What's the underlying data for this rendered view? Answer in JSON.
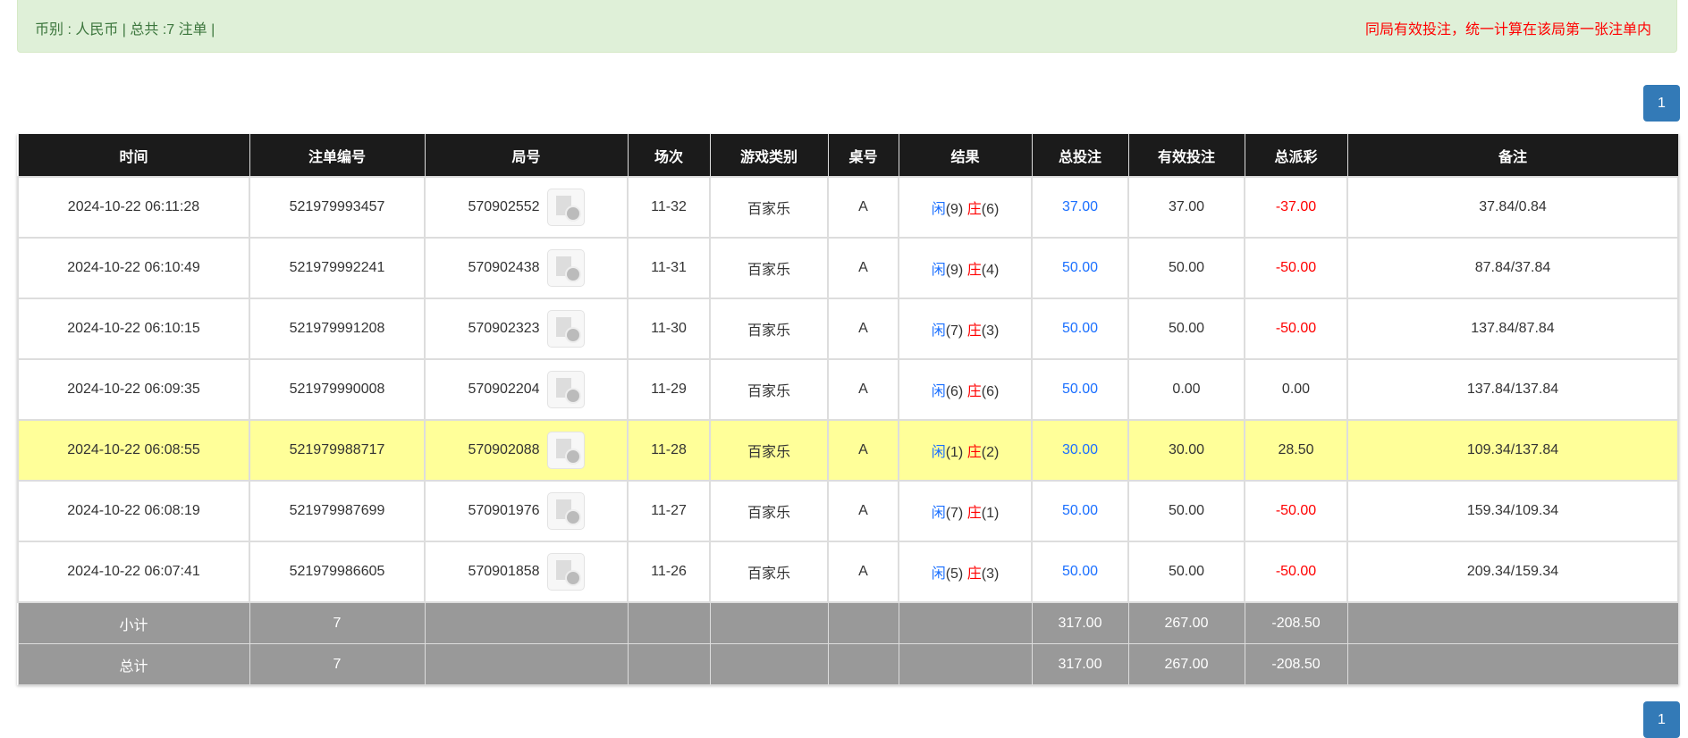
{
  "alert": {
    "left": "币别 : 人民币 | 总共 :7 注单 |",
    "right": "同局有效投注，统一计算在该局第一张注单内"
  },
  "pagination": {
    "page": "1"
  },
  "headers": [
    "时间",
    "注单编号",
    "局号",
    "场次",
    "游戏类别",
    "桌号",
    "结果",
    "总投注",
    "有效投注",
    "总派彩",
    "备注"
  ],
  "rows": [
    {
      "time": "2024-10-22 06:11:28",
      "bet_id": "521979993457",
      "round": "570902552",
      "session": "11-32",
      "game": "百家乐",
      "table": "A",
      "player": "闲",
      "pv": "(9)",
      "banker": "庄",
      "bv": "(6)",
      "total": "37.00",
      "valid": "37.00",
      "payout": "-37.00",
      "note": "37.84/0.84",
      "neg": true
    },
    {
      "time": "2024-10-22 06:10:49",
      "bet_id": "521979992241",
      "round": "570902438",
      "session": "11-31",
      "game": "百家乐",
      "table": "A",
      "player": "闲",
      "pv": "(9)",
      "banker": "庄",
      "bv": "(4)",
      "total": "50.00",
      "valid": "50.00",
      "payout": "-50.00",
      "note": "87.84/37.84",
      "neg": true
    },
    {
      "time": "2024-10-22 06:10:15",
      "bet_id": "521979991208",
      "round": "570902323",
      "session": "11-30",
      "game": "百家乐",
      "table": "A",
      "player": "闲",
      "pv": "(7)",
      "banker": "庄",
      "bv": "(3)",
      "total": "50.00",
      "valid": "50.00",
      "payout": "-50.00",
      "note": "137.84/87.84",
      "neg": true
    },
    {
      "time": "2024-10-22 06:09:35",
      "bet_id": "521979990008",
      "round": "570902204",
      "session": "11-29",
      "game": "百家乐",
      "table": "A",
      "player": "闲",
      "pv": "(6)",
      "banker": "庄",
      "bv": "(6)",
      "total": "50.00",
      "valid": "0.00",
      "payout": "0.00",
      "note": "137.84/137.84",
      "neg": false
    },
    {
      "time": "2024-10-22 06:08:55",
      "bet_id": "521979988717",
      "round": "570902088",
      "session": "11-28",
      "game": "百家乐",
      "table": "A",
      "player": "闲",
      "pv": "(1)",
      "banker": "庄",
      "bv": "(2)",
      "total": "30.00",
      "valid": "30.00",
      "payout": "28.50",
      "note": "109.34/137.84",
      "neg": false,
      "highlight": true
    },
    {
      "time": "2024-10-22 06:08:19",
      "bet_id": "521979987699",
      "round": "570901976",
      "session": "11-27",
      "game": "百家乐",
      "table": "A",
      "player": "闲",
      "pv": "(7)",
      "banker": "庄",
      "bv": "(1)",
      "total": "50.00",
      "valid": "50.00",
      "payout": "-50.00",
      "note": "159.34/109.34",
      "neg": true
    },
    {
      "time": "2024-10-22 06:07:41",
      "bet_id": "521979986605",
      "round": "570901858",
      "session": "11-26",
      "game": "百家乐",
      "table": "A",
      "player": "闲",
      "pv": "(5)",
      "banker": "庄",
      "bv": "(3)",
      "total": "50.00",
      "valid": "50.00",
      "payout": "-50.00",
      "note": "209.34/159.34",
      "neg": true
    }
  ],
  "summary": [
    {
      "label": "小计",
      "count": "7",
      "total": "317.00",
      "valid": "267.00",
      "payout": "-208.50"
    },
    {
      "label": "总计",
      "count": "7",
      "total": "317.00",
      "valid": "267.00",
      "payout": "-208.50"
    }
  ],
  "colors": {
    "accent": "#337ab7",
    "negative": "#ff0000",
    "bet": "#1a6fff",
    "highlight": "#ffff99"
  }
}
